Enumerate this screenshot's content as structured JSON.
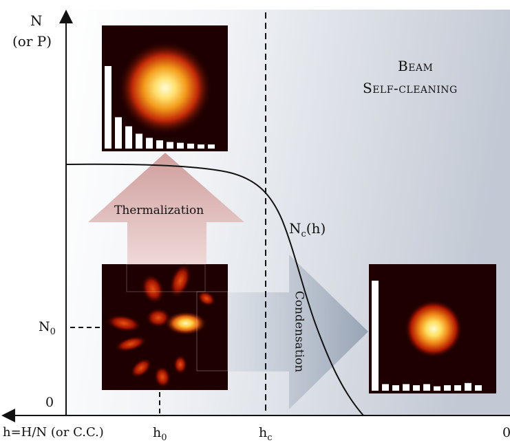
{
  "axes": {
    "y_label_line1": "N",
    "y_label_line2": "(or P)",
    "x_label": "h=H/N (or C.C.)",
    "zero_label": "0",
    "right_zero_label": "0",
    "n0_main": "N",
    "n0_sub": "0",
    "h0_main": "h",
    "h0_sub": "0",
    "hc_main": "h",
    "hc_sub": "c"
  },
  "curve": {
    "label_main": "N",
    "label_sub": "c",
    "label_arg": "(h)"
  },
  "region": {
    "line1": "Beam",
    "line2": "Self-cleaning"
  },
  "arrows": {
    "thermalization": "Thermalization",
    "condensation": "Condensation"
  },
  "insets": {
    "thermal_histogram": [
      1.0,
      0.38,
      0.27,
      0.18,
      0.13,
      0.1,
      0.08,
      0.07,
      0.06,
      0.05,
      0.05
    ],
    "condensed_histogram": [
      1.0,
      0.06,
      0.05,
      0.06,
      0.05,
      0.06,
      0.04,
      0.05,
      0.05,
      0.07,
      0.05
    ]
  },
  "colors": {
    "background_left": "#ffffff",
    "background_right": "#c5cbd6",
    "thermalization_arrow": "#d7aaa8",
    "condensation_arrow": "#a3aebe",
    "beam_core": "#fffbd0",
    "beam_mid": "#f0a020",
    "beam_edge": "#a01000"
  }
}
